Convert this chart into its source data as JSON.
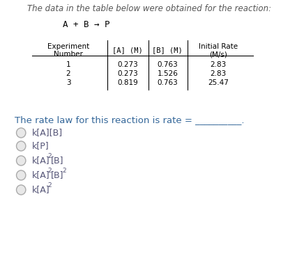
{
  "title": "The data in the table below were obtained for the reaction:",
  "reaction": "A + B → P",
  "table_col0_header": [
    "Experiment",
    "Number"
  ],
  "table_col1_header": "[A] (M)",
  "table_col2_header": "[B] (M)",
  "table_col3_header": [
    "Initial Rate",
    "(M/s)"
  ],
  "table_data": [
    [
      "1",
      "0.273",
      "0.763",
      "2.83"
    ],
    [
      "2",
      "0.273",
      "1.526",
      "2.83"
    ],
    [
      "3",
      "0.819",
      "0.763",
      "25.47"
    ]
  ],
  "rate_law_text": "The rate law for this reaction is rate = __________.",
  "bg_color": "#ffffff",
  "text_color": "#000000",
  "title_color": "#555555",
  "choice_text_color": "#555577",
  "circle_color": "#bbbbbb",
  "choices_main": [
    "k[A][B]",
    "k[P]",
    "k[A]",
    "k[A]",
    "k[A]"
  ],
  "choices_sup1": [
    "",
    "",
    "2",
    "2",
    "2"
  ],
  "choices_rest": [
    "",
    "",
    "[B]",
    "[B]",
    ""
  ],
  "choices_sup2": [
    "",
    "",
    "",
    "2",
    ""
  ],
  "rate_law_color": "#336699"
}
